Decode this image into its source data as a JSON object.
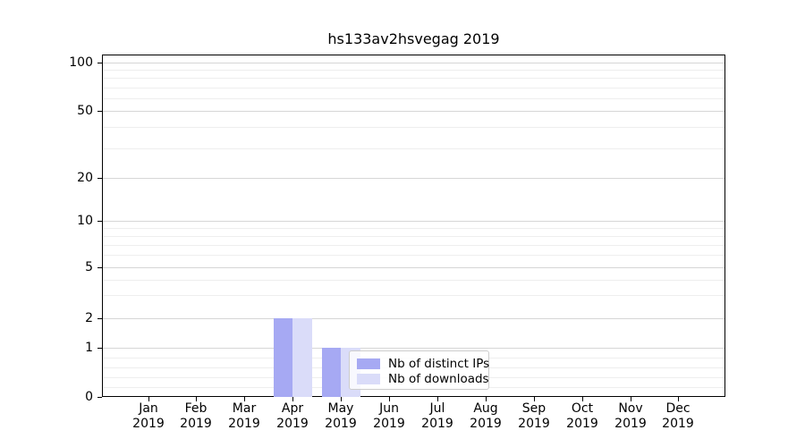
{
  "chart_data": {
    "type": "bar",
    "title": "hs133av2hsvegag 2019",
    "categories": [
      "Jan",
      "Feb",
      "Mar",
      "Apr",
      "May",
      "Jun",
      "Jul",
      "Aug",
      "Sep",
      "Oct",
      "Nov",
      "Dec"
    ],
    "category_year": "2019",
    "series": [
      {
        "name": "Nb of distinct IPs",
        "color": "#a6a9f3",
        "values": [
          0,
          0,
          0,
          2,
          1,
          0,
          0,
          0,
          0,
          0,
          0,
          0
        ]
      },
      {
        "name": "Nb of downloads",
        "color": "#dadcf9",
        "values": [
          0,
          0,
          0,
          2,
          1,
          0,
          0,
          0,
          0,
          0,
          0,
          0
        ]
      }
    ],
    "yaxis": {
      "scale": "symlog",
      "ticks": [
        0,
        1,
        2,
        5,
        10,
        20,
        50,
        100
      ]
    },
    "xlabel": "",
    "ylabel": "",
    "grid": true,
    "legend_position": "lower-center-inside",
    "colors": {
      "grid_major": "#d6d6d6",
      "grid_minor": "#eeeeee",
      "spine": "#000000"
    }
  }
}
